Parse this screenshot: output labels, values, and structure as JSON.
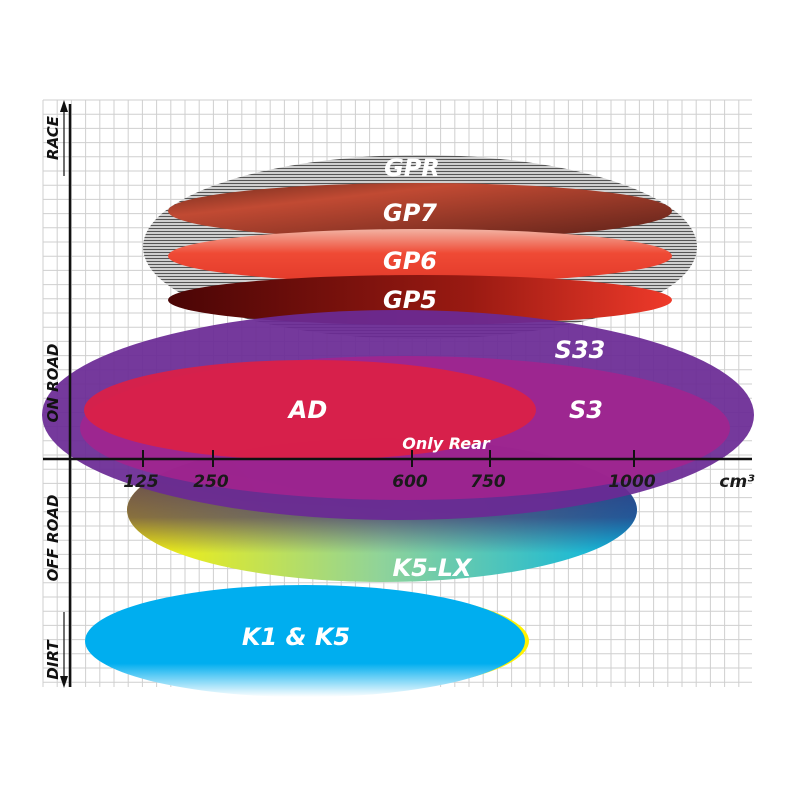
{
  "chart_data": {
    "type": "ellipse-positioning",
    "x_axis": {
      "unit": "cm³",
      "ticks": [
        "125",
        "250",
        "600",
        "750",
        "1000"
      ]
    },
    "y_axis": {
      "labels": [
        "RACE",
        "ON ROAD",
        "OFF ROAD",
        "DIRT"
      ]
    },
    "grid": true,
    "regions": [
      {
        "id": "gpr",
        "label": "GPR",
        "color": "#9a9a9a"
      },
      {
        "id": "gp7",
        "label": "GP7",
        "color": "#b5402c"
      },
      {
        "id": "gp6",
        "label": "GP6",
        "color": "#ef4a35"
      },
      {
        "id": "gp5",
        "label": "GP5",
        "color": "#8a1010"
      },
      {
        "id": "s33",
        "label": "S33",
        "color": "#6a2a95"
      },
      {
        "id": "s3",
        "label": "S3",
        "color": "#a4238e"
      },
      {
        "id": "ad",
        "label": "AD",
        "color": "#dc1f45"
      },
      {
        "id": "k5lx",
        "label": "K5-LX",
        "color": "#17b6d6"
      },
      {
        "id": "k1k5",
        "label": "K1 & K5",
        "color": "#00aeef"
      }
    ],
    "annotations": [
      "Only Rear"
    ]
  }
}
